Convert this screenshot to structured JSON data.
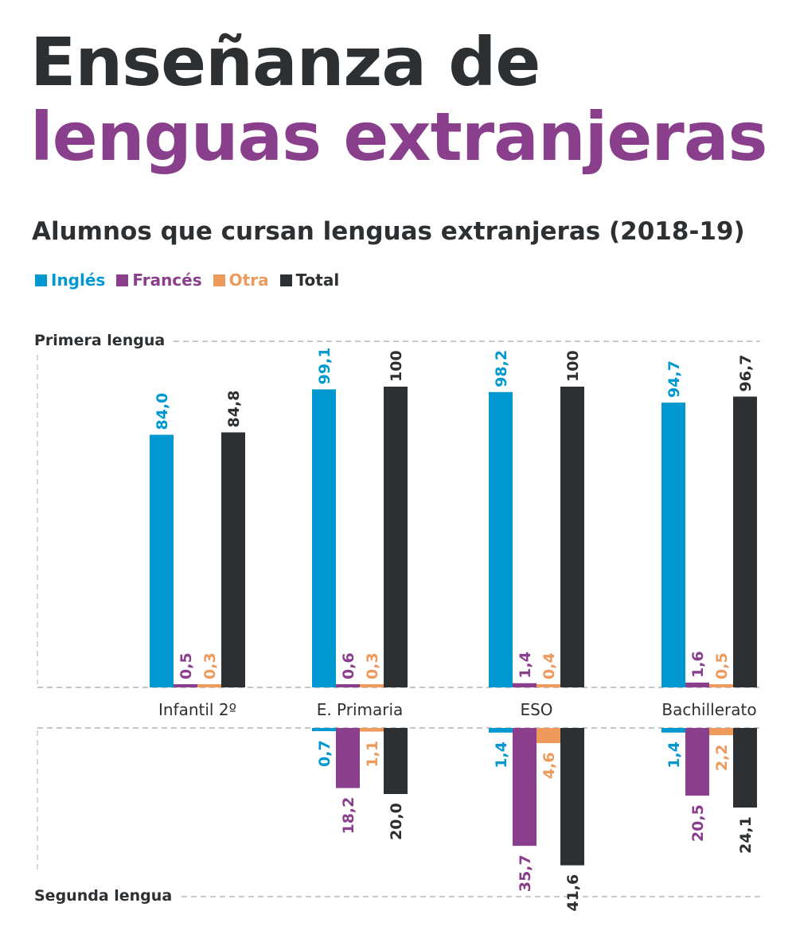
{
  "title_line1": "Enseñanza de",
  "title_line2": "lenguas extranjeras",
  "subtitle": "Alumnos que cursan lenguas extranjeras (2018-19)",
  "colors": {
    "Inglés": "#0098d0",
    "Francés": "#8a3f8d",
    "Otra": "#ee9a5d",
    "Total": "#2d3032"
  },
  "legend": [
    {
      "label": "Inglés",
      "color": "#0098d0"
    },
    {
      "label": "Francés",
      "color": "#8a3f8d"
    },
    {
      "label": "Otra",
      "color": "#ee9a5d"
    },
    {
      "label": "Total",
      "color": "#2d3032"
    }
  ],
  "chart_data": {
    "type": "bar",
    "title": "Alumnos que cursan lenguas extranjeras (2018-19)",
    "categories": [
      "Infantil 2º",
      "E. Primaria",
      "ESO",
      "Bachillerato"
    ],
    "ylim": [
      0,
      100
    ],
    "grid": false,
    "legend_position": "top-left",
    "panels": [
      {
        "name": "Primera lengua",
        "direction": "up",
        "series": [
          {
            "name": "Inglés",
            "values": [
              84.0,
              99.1,
              98.2,
              94.7
            ],
            "labels": [
              "84,0",
              "99,1",
              "98,2",
              "94,7"
            ]
          },
          {
            "name": "Francés",
            "values": [
              0.5,
              0.6,
              1.4,
              1.6
            ],
            "labels": [
              "0,5",
              "0,6",
              "1,4",
              "1,6"
            ]
          },
          {
            "name": "Otra",
            "values": [
              0.3,
              0.3,
              0.4,
              0.5
            ],
            "labels": [
              "0,3",
              "0,3",
              "0,4",
              "0,5"
            ]
          },
          {
            "name": "Total",
            "values": [
              84.8,
              100,
              100,
              96.7
            ],
            "labels": [
              "84,8",
              "100",
              "100",
              "96,7"
            ]
          }
        ]
      },
      {
        "name": "Segunda lengua",
        "direction": "down",
        "series": [
          {
            "name": "Inglés",
            "values": [
              null,
              0.7,
              1.4,
              1.4
            ],
            "labels": [
              null,
              "0,7",
              "1,4",
              "1,4"
            ]
          },
          {
            "name": "Francés",
            "values": [
              null,
              18.2,
              35.7,
              20.5
            ],
            "labels": [
              null,
              "18,2",
              "35,7",
              "20,5"
            ]
          },
          {
            "name": "Otra",
            "values": [
              null,
              1.1,
              4.6,
              2.2
            ],
            "labels": [
              null,
              "1,1",
              "4,6",
              "2,2"
            ]
          },
          {
            "name": "Total",
            "values": [
              null,
              20.0,
              41.6,
              24.1
            ],
            "labels": [
              null,
              "20,0",
              "41,6",
              "24,1"
            ]
          }
        ]
      }
    ]
  }
}
